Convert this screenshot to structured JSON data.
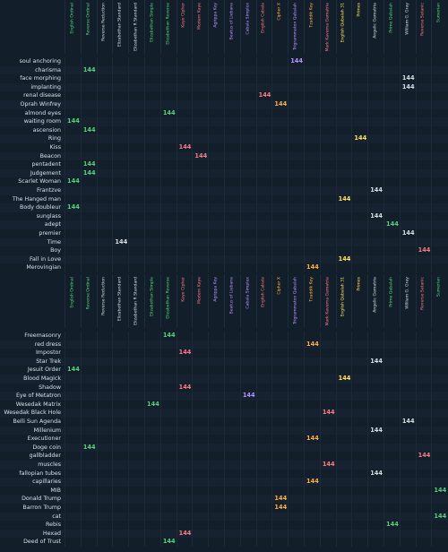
{
  "ciphers": [
    {
      "name": "English Ordinal",
      "color": "#57d37b"
    },
    {
      "name": "Reverse Ordinal",
      "color": "#57d37b"
    },
    {
      "name": "Reverse Reduction",
      "color": "#d7dfe4"
    },
    {
      "name": "Elizabethan Standard",
      "color": "#d7dfe4"
    },
    {
      "name": "Elizabethan R Standard",
      "color": "#d7dfe4"
    },
    {
      "name": "Elizabethan Simple",
      "color": "#57d37b"
    },
    {
      "name": "Elizabethan Reverse",
      "color": "#57d37b"
    },
    {
      "name": "Kaye Cipher",
      "color": "#ff7b86"
    },
    {
      "name": "Modern Kaye",
      "color": "#ff7b86"
    },
    {
      "name": "Agrippa Key",
      "color": "#b793ff"
    },
    {
      "name": "Beatus of Liebana",
      "color": "#b793ff"
    },
    {
      "name": "Cabala Simplex",
      "color": "#b793ff"
    },
    {
      "name": "English Cabala",
      "color": "#ff7b86"
    },
    {
      "name": "Cipher X",
      "color": "#ffb142"
    },
    {
      "name": "Trigrammaton Qabalah",
      "color": "#b793ff"
    },
    {
      "name": "Tzaddik Key",
      "color": "#ffb142"
    },
    {
      "name": "Mark Kaverna Gematria",
      "color": "#ff7b86"
    },
    {
      "name": "English Qabalah 31",
      "color": "#ffe45c"
    },
    {
      "name": "Primes",
      "color": "#ffe45c"
    },
    {
      "name": "Angelic Gematria",
      "color": "#d7dfe4"
    },
    {
      "name": "Prime Qabalah",
      "color": "#57d37b"
    },
    {
      "name": "William G. Gray",
      "color": "#d7dfe4"
    },
    {
      "name": "Reverse Satanic",
      "color": "#ff7b86"
    },
    {
      "name": "Sumerian",
      "color": "#57d37b"
    }
  ],
  "section1": {
    "rows": [
      {
        "label": "soul anchoring",
        "hit": 14,
        "hit_value": "144"
      },
      {
        "label": "charisma",
        "hit": 1,
        "hit_value": "144"
      },
      {
        "label": "face morphing",
        "hit": 21,
        "hit_value": "144"
      },
      {
        "label": "implanting",
        "hit": 21,
        "hit_value": "144"
      },
      {
        "label": "renal disease",
        "hit": 12,
        "hit_value": "144"
      },
      {
        "label": "Oprah Winfrey",
        "hit": 13,
        "hit_value": "144"
      },
      {
        "label": "almond eyes",
        "hit": 6,
        "hit_value": "144"
      },
      {
        "label": "waiting room",
        "hit": 0,
        "hit_value": "144"
      },
      {
        "label": "ascension",
        "hit": 1,
        "hit_value": "144"
      },
      {
        "label": "Ring",
        "hit": 18,
        "hit_value": "144"
      },
      {
        "label": "Kiss",
        "hit": 7,
        "hit_value": "144"
      },
      {
        "label": "Beacon",
        "hit": 8,
        "hit_value": "144"
      },
      {
        "label": "pentadent",
        "hit": 1,
        "hit_value": "144"
      },
      {
        "label": "Judgement",
        "hit": 1,
        "hit_value": "144"
      },
      {
        "label": "Scarlet Woman",
        "hit": 0,
        "hit_value": "144"
      },
      {
        "label": "Frantzve",
        "hit": 19,
        "hit_value": "144"
      },
      {
        "label": "The Hanged man",
        "hit": 17,
        "hit_value": "144"
      },
      {
        "label": "Body doubleur",
        "hit": 0,
        "hit_value": "144"
      },
      {
        "label": "sunglass",
        "hit": 19,
        "hit_value": "144"
      },
      {
        "label": "adept",
        "hit": 20,
        "hit_value": "144"
      },
      {
        "label": "premier",
        "hit": 21,
        "hit_value": "144"
      },
      {
        "label": "Time",
        "hit": 3,
        "hit_value": "144"
      },
      {
        "label": "Boy",
        "hit": 22,
        "hit_value": "144"
      },
      {
        "label": "Fall in Love",
        "hit": 17,
        "hit_value": "144"
      },
      {
        "label": "Merovingian",
        "hit": 15,
        "hit_value": "144"
      }
    ]
  },
  "section2": {
    "rows": [
      {
        "label": "Freemasonry",
        "hit": 6,
        "hit_value": "144"
      },
      {
        "label": "red dress",
        "hit": 15,
        "hit_value": "144"
      },
      {
        "label": "Impostor",
        "hit": 7,
        "hit_value": "144"
      },
      {
        "label": "Star Trek",
        "hit": 19,
        "hit_value": "144"
      },
      {
        "label": "Jesuit Order",
        "hit": 0,
        "hit_value": "144"
      },
      {
        "label": "Blood Magick",
        "hit": 17,
        "hit_value": "144"
      },
      {
        "label": "Shadow",
        "hit": 7,
        "hit_value": "144"
      },
      {
        "label": "Eye of Metatron",
        "hit": 11,
        "hit_value": "144"
      },
      {
        "label": "Wesedak Matrix",
        "hit": 5,
        "hit_value": "144"
      },
      {
        "label": "Wesedak Black Hole",
        "hit": 16,
        "hit_value": "144"
      },
      {
        "label": "Belli Sun Agenda",
        "hit": 21,
        "hit_value": "144"
      },
      {
        "label": "Millenium",
        "hit": 19,
        "hit_value": "144"
      },
      {
        "label": "Executioner",
        "hit": 15,
        "hit_value": "144"
      },
      {
        "label": "Doge coin",
        "hit": 1,
        "hit_value": "144"
      },
      {
        "label": "gallbladder",
        "hit": 22,
        "hit_value": "144"
      },
      {
        "label": "muscles",
        "hit": 16,
        "hit_value": "144"
      },
      {
        "label": "fallopian tubes",
        "hit": 19,
        "hit_value": "144"
      },
      {
        "label": "capillaries",
        "hit": 15,
        "hit_value": "144"
      },
      {
        "label": "MIB",
        "hit": 23,
        "hit_value": "144"
      },
      {
        "label": "Donald Trump",
        "hit": 13,
        "hit_value": "144"
      },
      {
        "label": "Barron Trump",
        "hit": 13,
        "hit_value": "144"
      },
      {
        "label": "cat",
        "hit": 23,
        "hit_value": "144"
      },
      {
        "label": "Rebis",
        "hit": 20,
        "hit_value": "144"
      },
      {
        "label": "Hexad",
        "hit": 7,
        "hit_value": "144"
      },
      {
        "label": "Deed of Trust",
        "hit": 6,
        "hit_value": "144"
      }
    ]
  }
}
